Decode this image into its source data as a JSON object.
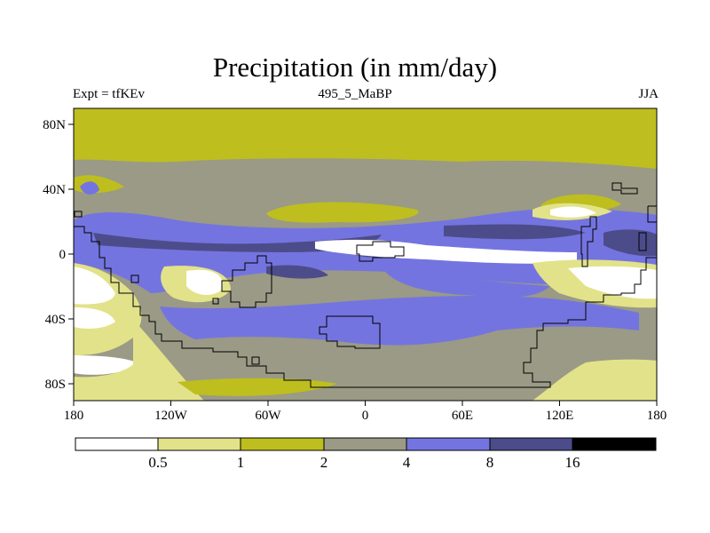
{
  "title": "Precipitation (in mm/day)",
  "subtitle_left": "Expt = tfKEv",
  "subtitle_center": "495_5_MaBP",
  "subtitle_right": "JJA",
  "lon_labels": [
    "180",
    "120W",
    "60W",
    "0",
    "60E",
    "120E",
    "180"
  ],
  "lat_labels": [
    "80N",
    "40N",
    "0",
    "40S",
    "80S"
  ],
  "colorbar": {
    "colors": [
      "#ffffff",
      "#e2e28a",
      "#bebe1f",
      "#9a9a86",
      "#7474e0",
      "#4c4c8a",
      "#000000"
    ],
    "labels": [
      "0.5",
      "1",
      "2",
      "4",
      "8",
      "16"
    ]
  },
  "legend_colors": {
    "lt0_5": "#ffffff",
    "c0_5_1": "#e2e28a",
    "c1_2": "#bebe1f",
    "c2_4": "#9a9a86",
    "c4_8": "#7474e0",
    "c8_16": "#4c4c8a",
    "gt16": "#000000"
  }
}
